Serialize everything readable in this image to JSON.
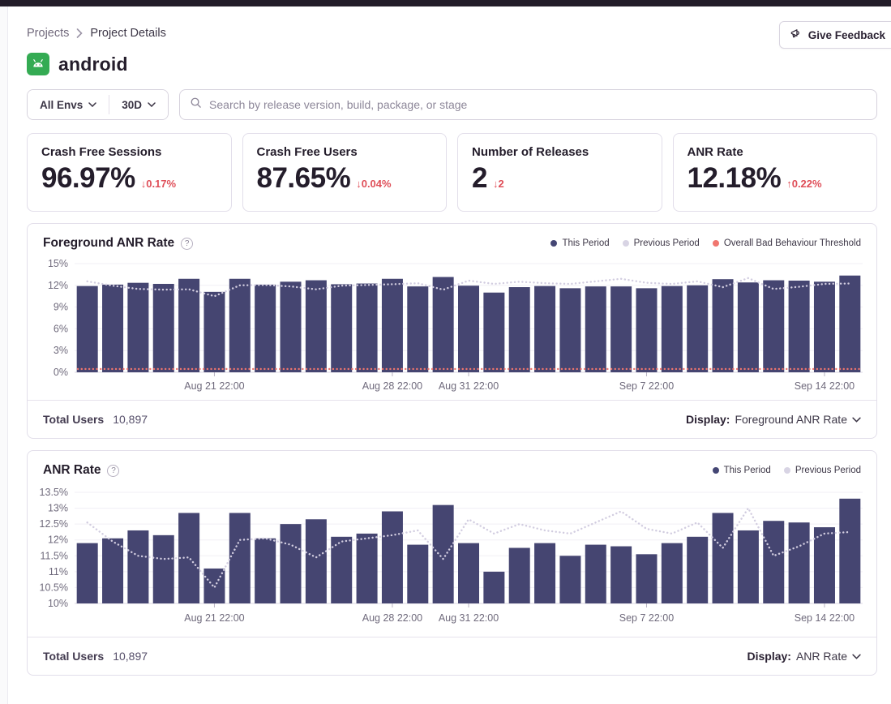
{
  "breadcrumb": {
    "parent": "Projects",
    "current": "Project Details"
  },
  "feedback_button": {
    "label": "Give Feedback"
  },
  "project": {
    "name": "android"
  },
  "filters": {
    "env_label": "All Envs",
    "period_label": "30D",
    "search_placeholder": "Search by release version, build, package, or stage"
  },
  "score_cards": [
    {
      "title": "Crash Free Sessions",
      "value": "96.97%",
      "arrow": "↓",
      "delta": "0.17%"
    },
    {
      "title": "Crash Free Users",
      "value": "87.65%",
      "arrow": "↓",
      "delta": "0.04%"
    },
    {
      "title": "Number of Releases",
      "value": "2",
      "arrow": "↓",
      "delta": "2"
    },
    {
      "title": "ANR Rate",
      "value": "12.18%",
      "arrow": "↑",
      "delta": "0.22%"
    }
  ],
  "colors": {
    "bar": "#454571",
    "prev_line": "#d2cde0",
    "threshold_line": "#ef756e",
    "grid": "#f1eff5",
    "base_line": "#dbd7e3",
    "tick": "#b8b3c2",
    "axis_text": "#6f6a7c",
    "legend_this": "#444674",
    "legend_prev": "#d8d4e4",
    "legend_threshold": "#f0766f"
  },
  "chart_data": [
    {
      "type": "bar",
      "title": "Foreground ANR Rate",
      "legend": [
        {
          "label": "This Period",
          "color": "#444674"
        },
        {
          "label": "Previous Period",
          "color": "#d8d4e4"
        },
        {
          "label": "Overall Bad Behaviour Threshold",
          "color": "#f0766f"
        }
      ],
      "ylim": [
        0,
        15
      ],
      "y_tick_values": [
        0,
        3,
        6,
        9,
        12,
        15
      ],
      "y_tick_labels": [
        "0%",
        "3%",
        "6%",
        "9%",
        "12%",
        "15%"
      ],
      "x_tick_labels": [
        "Aug 21 22:00",
        "Aug 28 22:00",
        "Aug 31 22:00",
        "Sep 7 22:00",
        "Sep 14 22:00"
      ],
      "x_tick_indices": [
        5,
        12,
        15,
        22,
        29
      ],
      "series": [
        {
          "name": "This Period",
          "type": "bar",
          "values": [
            11.9,
            12.1,
            12.35,
            12.2,
            12.9,
            11.1,
            12.9,
            12.1,
            12.5,
            12.7,
            12.15,
            12.25,
            12.9,
            11.85,
            13.15,
            11.95,
            11.0,
            11.75,
            11.9,
            11.6,
            11.85,
            11.85,
            11.6,
            11.9,
            12.0,
            12.85,
            12.4,
            12.7,
            12.65,
            12.5,
            13.35
          ]
        },
        {
          "name": "Previous Period",
          "type": "dotted-line",
          "values": [
            12.55,
            11.95,
            11.5,
            11.4,
            11.45,
            10.5,
            12.0,
            12.05,
            11.85,
            11.45,
            11.95,
            12.05,
            12.15,
            12.3,
            11.4,
            12.65,
            12.2,
            12.5,
            12.3,
            12.2,
            12.55,
            12.9,
            12.35,
            12.2,
            12.55,
            11.75,
            13.0,
            11.5,
            11.8,
            12.2,
            12.25
          ]
        },
        {
          "name": "Overall Bad Behaviour Threshold",
          "type": "threshold",
          "value": 0.45
        }
      ],
      "footer": {
        "total_users_label": "Total Users",
        "total_users": "10,897",
        "display_label": "Display:",
        "display_value": "Foreground ANR Rate"
      }
    },
    {
      "type": "bar",
      "title": "ANR Rate",
      "legend": [
        {
          "label": "This Period",
          "color": "#444674"
        },
        {
          "label": "Previous Period",
          "color": "#d8d4e4"
        }
      ],
      "ylim": [
        10,
        13.5
      ],
      "y_tick_values": [
        10,
        10.5,
        11,
        11.5,
        12,
        12.5,
        13,
        13.5
      ],
      "y_tick_labels": [
        "10%",
        "10.5%",
        "11%",
        "11.5%",
        "12%",
        "12.5%",
        "13%",
        "13.5%"
      ],
      "x_tick_labels": [
        "Aug 21 22:00",
        "Aug 28 22:00",
        "Aug 31 22:00",
        "Sep 7 22:00",
        "Sep 14 22:00"
      ],
      "x_tick_indices": [
        5,
        12,
        15,
        22,
        29
      ],
      "series": [
        {
          "name": "This Period",
          "type": "bar",
          "values": [
            11.9,
            12.05,
            12.3,
            12.15,
            12.85,
            11.1,
            12.85,
            12.05,
            12.5,
            12.65,
            12.1,
            12.2,
            12.9,
            11.85,
            13.1,
            11.9,
            11.0,
            11.75,
            11.9,
            11.5,
            11.85,
            11.8,
            11.55,
            11.9,
            12.1,
            12.85,
            12.3,
            12.6,
            12.55,
            12.4,
            13.3
          ]
        },
        {
          "name": "Previous Period",
          "type": "dotted-line",
          "values": [
            12.55,
            11.95,
            11.5,
            11.4,
            11.45,
            10.5,
            12.0,
            12.05,
            11.85,
            11.45,
            11.95,
            12.05,
            12.15,
            12.3,
            11.4,
            12.65,
            12.2,
            12.5,
            12.3,
            12.2,
            12.55,
            12.9,
            12.35,
            12.2,
            12.55,
            11.75,
            13.0,
            11.5,
            11.8,
            12.2,
            12.25
          ]
        }
      ],
      "footer": {
        "total_users_label": "Total Users",
        "total_users": "10,897",
        "display_label": "Display:",
        "display_value": "ANR Rate"
      }
    }
  ]
}
